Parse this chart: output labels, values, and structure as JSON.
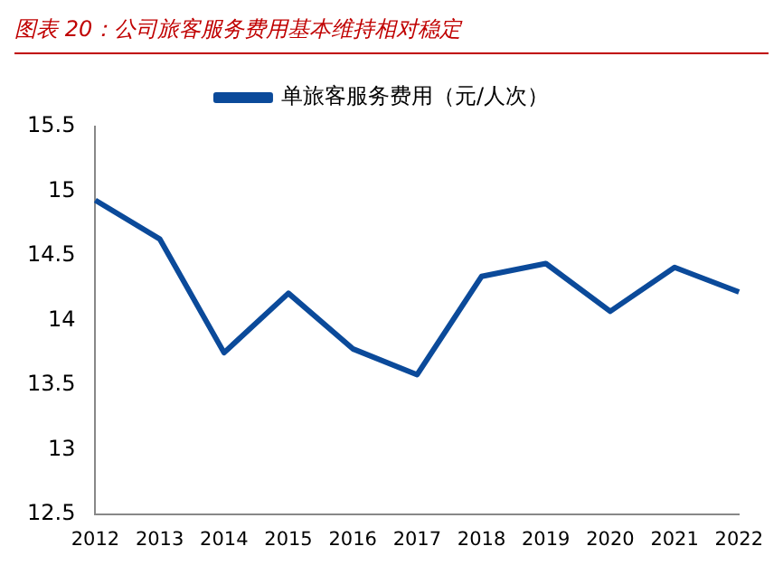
{
  "chart_data": {
    "type": "line",
    "title": "图表 20：公司旅客服务费用基本维持相对稳定",
    "categories": [
      "2012",
      "2013",
      "2014",
      "2015",
      "2016",
      "2017",
      "2018",
      "2019",
      "2020",
      "2021",
      "2022"
    ],
    "series": [
      {
        "name": "单旅客服务费用（元/人次）",
        "color": "#0b4a9a",
        "values": [
          14.93,
          14.63,
          13.75,
          14.21,
          13.78,
          13.58,
          14.34,
          14.44,
          14.07,
          14.41,
          14.22
        ]
      }
    ],
    "ylim": [
      12.5,
      15.5
    ],
    "yticks": [
      12.5,
      13,
      13.5,
      14,
      14.5,
      15,
      15.5
    ],
    "grid": false,
    "legend": "top",
    "marker": "none",
    "line_style": "solid"
  }
}
